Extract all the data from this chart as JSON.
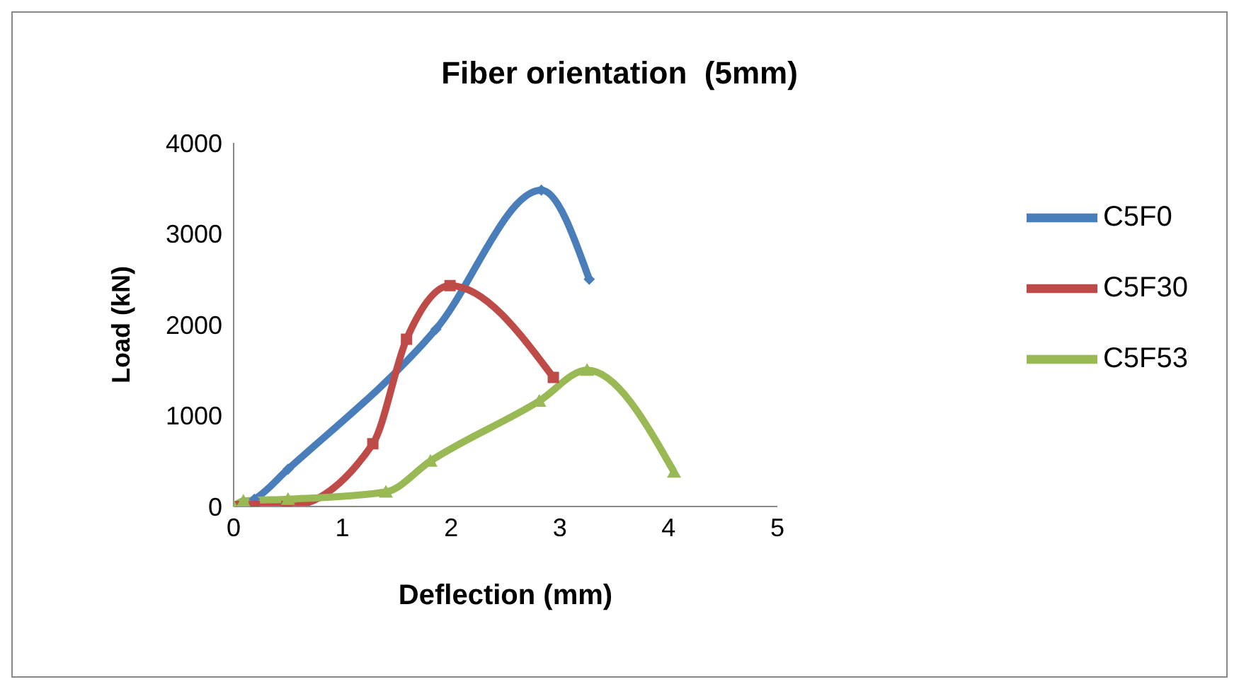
{
  "chart_data": {
    "type": "line",
    "title": "Fiber orientation  (5mm)",
    "xlabel": "Deflection (mm)",
    "ylabel": "Load (kN)",
    "xlim": [
      0,
      5
    ],
    "xticks": [
      0,
      1,
      2,
      3,
      4,
      5
    ],
    "ylim": [
      0,
      4000
    ],
    "yticks": [
      0,
      1000,
      2000,
      3000,
      4000
    ],
    "grid": false,
    "legend": "right",
    "line_style": "solid",
    "series": [
      {
        "name": "C5F0",
        "color": "#4a7ebb",
        "marker": "diamond",
        "x": [
          0,
          0.19,
          0.5,
          1.86,
          2.83,
          3.27
        ],
        "values": [
          0,
          80,
          410,
          1950,
          3480,
          2500
        ]
      },
      {
        "name": "C5F30",
        "color": "#be4b48",
        "marker": "square",
        "x": [
          0,
          0.19,
          0.49,
          1.28,
          1.59,
          1.99,
          2.94
        ],
        "values": [
          0,
          0,
          0,
          690,
          1840,
          2430,
          1420
        ]
      },
      {
        "name": "C5F53",
        "color": "#98b954",
        "marker": "triangle",
        "x": [
          0,
          0.09,
          0.5,
          1.4,
          1.81,
          2.81,
          3.25,
          4.05
        ],
        "values": [
          0,
          60,
          80,
          160,
          500,
          1160,
          1500,
          380
        ]
      }
    ]
  }
}
